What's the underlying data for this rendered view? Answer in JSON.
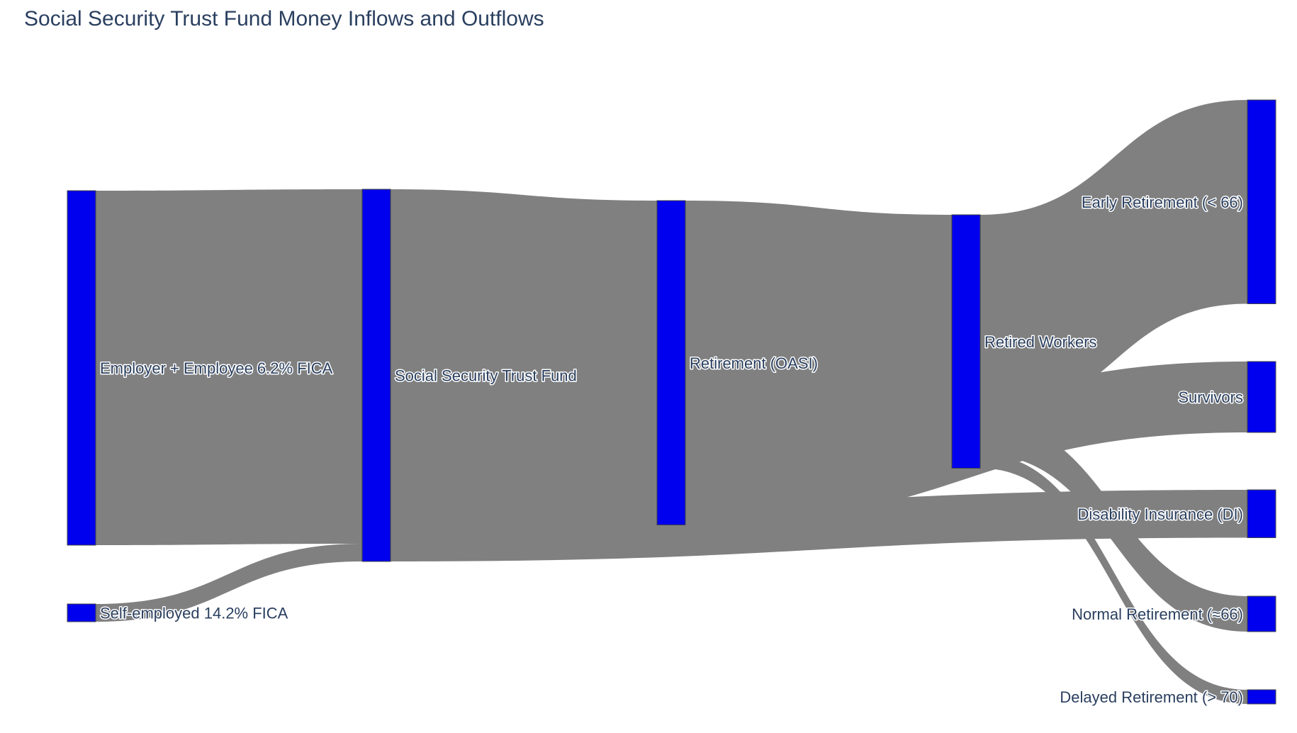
{
  "chart_data": {
    "type": "sankey",
    "title": "Social Security Trust Fund Money Inflows and Outflows",
    "node_color": "#0000ee",
    "link_color": "#808080",
    "nodes": [
      {
        "id": "employer_employee",
        "label": "Employer + Employee 6.2% FICA",
        "column": 0
      },
      {
        "id": "self_employed",
        "label": "Self-employed 14.2% FICA",
        "column": 0
      },
      {
        "id": "trust_fund",
        "label": "Social Security Trust Fund",
        "column": 1
      },
      {
        "id": "oasi",
        "label": "Retirement (OASI)",
        "column": 2
      },
      {
        "id": "retired_workers",
        "label": "Retired Workers",
        "column": 3
      },
      {
        "id": "early",
        "label": "Early Retirement (< 66)",
        "column": 4
      },
      {
        "id": "survivors",
        "label": "Survivors",
        "column": 4
      },
      {
        "id": "di",
        "label": "Disability Insurance (DI)",
        "column": 4
      },
      {
        "id": "normal",
        "label": "Normal Retirement (≈66)",
        "column": 4
      },
      {
        "id": "delayed",
        "label": "Delayed Retirement (> 70)",
        "column": 4
      }
    ],
    "links": [
      {
        "source": "employer_employee",
        "target": "trust_fund",
        "value": 1000
      },
      {
        "source": "self_employed",
        "target": "trust_fund",
        "value": 50
      },
      {
        "source": "trust_fund",
        "target": "oasi",
        "value": 915
      },
      {
        "source": "trust_fund",
        "target": "di",
        "value": 135
      },
      {
        "source": "oasi",
        "target": "retired_workers",
        "value": 715
      },
      {
        "source": "oasi",
        "target": "survivors",
        "value": 200
      },
      {
        "source": "retired_workers",
        "target": "early",
        "value": 575
      },
      {
        "source": "retired_workers",
        "target": "normal",
        "value": 100
      },
      {
        "source": "retired_workers",
        "target": "delayed",
        "value": 40
      }
    ]
  }
}
